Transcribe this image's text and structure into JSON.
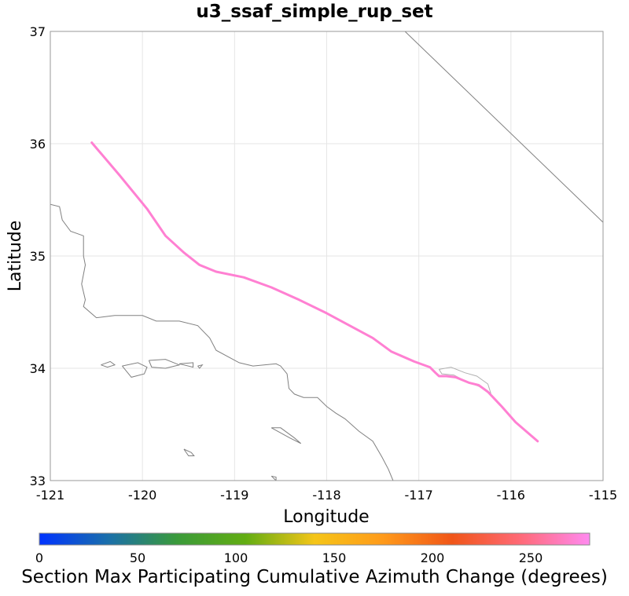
{
  "title": "u3_ssaf_simple_rup_set",
  "colors": {
    "fault_trace": "#ff80d2",
    "coastline": "#808080",
    "gridline": "#e6e6e6",
    "plot_border": "#999999",
    "section_outline": "#b0b0b0"
  },
  "chart_data": {
    "type": "map",
    "xlabel": "Longitude",
    "ylabel": "Latitude",
    "xlim": [
      -121,
      -115
    ],
    "ylim": [
      33,
      37
    ],
    "x_ticks": [
      -121,
      -120,
      -119,
      -118,
      -117,
      -116,
      -115
    ],
    "y_ticks": [
      33,
      34,
      35,
      36,
      37
    ],
    "x_tick_labels": [
      "-121",
      "-120",
      "-119",
      "-118",
      "-117",
      "-116",
      "-115"
    ],
    "y_tick_labels": [
      "33",
      "34",
      "35",
      "36",
      "37"
    ],
    "grid": true,
    "fault_trace": [
      [
        -120.55,
        36.01
      ],
      [
        -120.25,
        35.72
      ],
      [
        -119.95,
        35.42
      ],
      [
        -119.75,
        35.18
      ],
      [
        -119.55,
        35.03
      ],
      [
        -119.38,
        34.92
      ],
      [
        -119.2,
        34.86
      ],
      [
        -118.9,
        34.81
      ],
      [
        -118.6,
        34.72
      ],
      [
        -118.3,
        34.61
      ],
      [
        -118.0,
        34.49
      ],
      [
        -117.75,
        34.38
      ],
      [
        -117.5,
        34.27
      ],
      [
        -117.3,
        34.15
      ],
      [
        -117.05,
        34.06
      ],
      [
        -116.88,
        34.01
      ],
      [
        -116.82,
        33.96
      ],
      [
        -116.78,
        33.93
      ],
      [
        -116.7,
        33.93
      ],
      [
        -116.6,
        33.92
      ],
      [
        -116.45,
        33.87
      ],
      [
        -116.35,
        33.85
      ],
      [
        -116.25,
        33.79
      ],
      [
        -116.1,
        33.66
      ],
      [
        -115.95,
        33.52
      ],
      [
        -115.71,
        33.35
      ]
    ],
    "section_outline": [
      [
        -116.78,
        33.99
      ],
      [
        -116.65,
        34.01
      ],
      [
        -116.5,
        33.96
      ],
      [
        -116.37,
        33.93
      ],
      [
        -116.25,
        33.86
      ],
      [
        -116.22,
        33.78
      ],
      [
        -116.35,
        33.84
      ],
      [
        -116.48,
        33.88
      ],
      [
        -116.62,
        33.94
      ],
      [
        -116.75,
        33.95
      ],
      [
        -116.78,
        33.99
      ]
    ],
    "boundary_line": [
      [
        -117.15,
        37.0
      ],
      [
        -115.0,
        35.3
      ]
    ],
    "coastline": [
      [
        -121.0,
        35.46
      ],
      [
        -120.9,
        35.44
      ],
      [
        -120.87,
        35.32
      ],
      [
        -120.78,
        35.22
      ],
      [
        -120.64,
        35.18
      ],
      [
        -120.64,
        35.0
      ],
      [
        -120.62,
        34.92
      ],
      [
        -120.66,
        34.75
      ],
      [
        -120.62,
        34.61
      ],
      [
        -120.64,
        34.55
      ],
      [
        -120.5,
        34.45
      ],
      [
        -120.3,
        34.47
      ],
      [
        -120.0,
        34.47
      ],
      [
        -119.85,
        34.42
      ],
      [
        -119.6,
        34.42
      ],
      [
        -119.4,
        34.38
      ],
      [
        -119.27,
        34.27
      ],
      [
        -119.2,
        34.16
      ],
      [
        -118.95,
        34.05
      ],
      [
        -118.8,
        34.02
      ],
      [
        -118.55,
        34.04
      ],
      [
        -118.5,
        34.02
      ],
      [
        -118.43,
        33.95
      ],
      [
        -118.41,
        33.82
      ],
      [
        -118.35,
        33.77
      ],
      [
        -118.25,
        33.74
      ],
      [
        -118.1,
        33.74
      ],
      [
        -118.0,
        33.66
      ],
      [
        -117.9,
        33.6
      ],
      [
        -117.8,
        33.55
      ],
      [
        -117.65,
        33.44
      ],
      [
        -117.5,
        33.35
      ],
      [
        -117.4,
        33.21
      ],
      [
        -117.33,
        33.1
      ],
      [
        -117.28,
        33.0
      ]
    ],
    "islands": [
      [
        [
          -120.45,
          34.03
        ],
        [
          -120.35,
          34.06
        ],
        [
          -120.3,
          34.03
        ],
        [
          -120.38,
          34.01
        ],
        [
          -120.45,
          34.03
        ]
      ],
      [
        [
          -120.22,
          34.02
        ],
        [
          -120.05,
          34.05
        ],
        [
          -119.95,
          34.01
        ],
        [
          -119.98,
          33.95
        ],
        [
          -120.12,
          33.92
        ],
        [
          -120.22,
          34.02
        ]
      ],
      [
        [
          -119.93,
          34.07
        ],
        [
          -119.75,
          34.08
        ],
        [
          -119.6,
          34.03
        ],
        [
          -119.75,
          34.0
        ],
        [
          -119.9,
          34.01
        ],
        [
          -119.93,
          34.07
        ]
      ],
      [
        [
          -119.6,
          34.04
        ],
        [
          -119.45,
          34.05
        ],
        [
          -119.45,
          34.01
        ],
        [
          -119.6,
          34.04
        ]
      ],
      [
        [
          -119.4,
          34.02
        ],
        [
          -119.35,
          34.03
        ],
        [
          -119.38,
          34.0
        ],
        [
          -119.4,
          34.02
        ]
      ],
      [
        [
          -118.6,
          33.47
        ],
        [
          -118.5,
          33.47
        ],
        [
          -118.35,
          33.38
        ],
        [
          -118.28,
          33.33
        ],
        [
          -118.4,
          33.38
        ],
        [
          -118.6,
          33.47
        ]
      ],
      [
        [
          -119.55,
          33.28
        ],
        [
          -119.47,
          33.25
        ],
        [
          -119.44,
          33.22
        ],
        [
          -119.5,
          33.22
        ],
        [
          -119.55,
          33.28
        ]
      ],
      [
        [
          -118.6,
          33.04
        ],
        [
          -118.55,
          33.03
        ],
        [
          -118.55,
          33.0
        ],
        [
          -118.6,
          33.04
        ]
      ]
    ],
    "colorbar": {
      "label": "Section Max Participating Cumulative Azimuth Change (degrees)",
      "min": 0,
      "max": 280,
      "ticks": [
        0,
        50,
        100,
        150,
        200,
        250
      ],
      "tick_labels": [
        "0",
        "50",
        "100",
        "150",
        "200",
        "250"
      ],
      "stops": [
        "#0033ff",
        "#1a6faa",
        "#3a9a3a",
        "#62ad12",
        "#f5c518",
        "#ff9a1a",
        "#f05518",
        "#ff6a78",
        "#ff8af0"
      ]
    }
  }
}
